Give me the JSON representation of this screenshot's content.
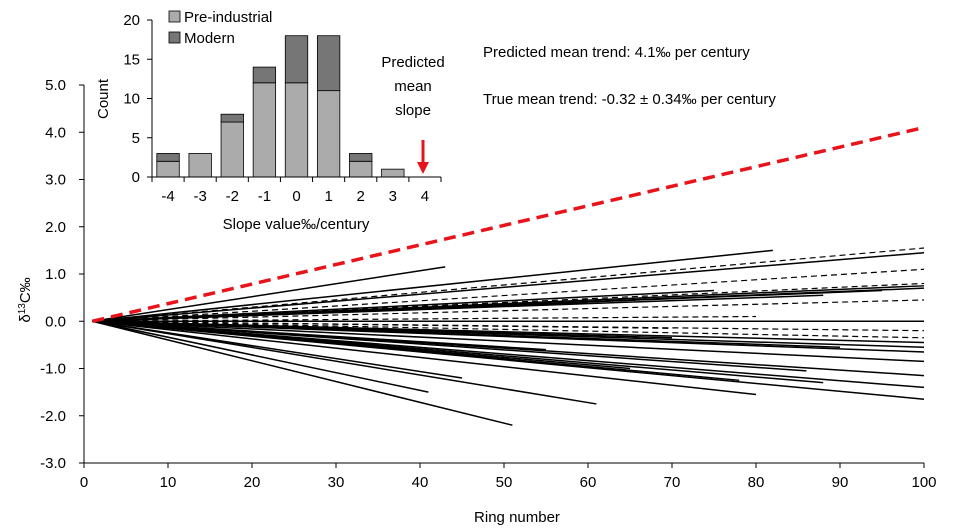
{
  "chart_data": [
    {
      "type": "line",
      "xlabel": "Ring number",
      "ylabel": "δ13C‰",
      "ylabel_parts": [
        "δ",
        "13",
        "C‰"
      ],
      "xlim": [
        0,
        100
      ],
      "ylim": [
        -3.0,
        5.0
      ],
      "x_ticks": [
        "0",
        "10",
        "20",
        "30",
        "40",
        "50",
        "60",
        "70",
        "80",
        "90",
        "100"
      ],
      "y_ticks": [
        "-3.0",
        "-2.0",
        "-1.0",
        "0.0",
        "1.0",
        "2.0",
        "3.0",
        "4.0",
        "5.0"
      ],
      "grid": false,
      "annotations": [
        "Predicted mean trend: 4.1‰ per century",
        "True mean trend: -0.32 ± 0.34‰ per century"
      ],
      "predicted_trend": {
        "style": "dashed",
        "color": "#e8141b",
        "x": [
          1,
          100
        ],
        "y": [
          0.0,
          4.1
        ]
      },
      "series_solid": [
        {
          "x": [
            1,
            43
          ],
          "y": [
            0,
            1.15
          ]
        },
        {
          "x": [
            1,
            82
          ],
          "y": [
            0,
            1.5
          ]
        },
        {
          "x": [
            1,
            100
          ],
          "y": [
            0,
            1.45
          ]
        },
        {
          "x": [
            1,
            100
          ],
          "y": [
            0,
            0.75
          ]
        },
        {
          "x": [
            1,
            100
          ],
          "y": [
            0,
            0.7
          ]
        },
        {
          "x": [
            1,
            95
          ],
          "y": [
            0,
            0.65
          ]
        },
        {
          "x": [
            1,
            88
          ],
          "y": [
            0,
            0.55
          ]
        },
        {
          "x": [
            1,
            75
          ],
          "y": [
            0,
            0.65
          ]
        },
        {
          "x": [
            1,
            60
          ],
          "y": [
            0,
            0.4
          ]
        },
        {
          "x": [
            1,
            100
          ],
          "y": [
            0,
            0.0
          ]
        },
        {
          "x": [
            1,
            100
          ],
          "y": [
            0,
            -0.45
          ]
        },
        {
          "x": [
            1,
            100
          ],
          "y": [
            0,
            -0.55
          ]
        },
        {
          "x": [
            1,
            100
          ],
          "y": [
            0,
            -0.65
          ]
        },
        {
          "x": [
            1,
            90
          ],
          "y": [
            0,
            -0.55
          ]
        },
        {
          "x": [
            1,
            100
          ],
          "y": [
            0,
            -0.85
          ]
        },
        {
          "x": [
            1,
            100
          ],
          "y": [
            0,
            -1.15
          ]
        },
        {
          "x": [
            1,
            100
          ],
          "y": [
            0,
            -1.4
          ]
        },
        {
          "x": [
            1,
            100
          ],
          "y": [
            0,
            -1.65
          ]
        },
        {
          "x": [
            1,
            88
          ],
          "y": [
            0,
            -1.3
          ]
        },
        {
          "x": [
            1,
            86
          ],
          "y": [
            0,
            -1.05
          ]
        },
        {
          "x": [
            1,
            78
          ],
          "y": [
            0,
            -1.25
          ]
        },
        {
          "x": [
            1,
            80
          ],
          "y": [
            0,
            -1.55
          ]
        },
        {
          "x": [
            1,
            65
          ],
          "y": [
            0,
            -1.0
          ]
        },
        {
          "x": [
            1,
            61
          ],
          "y": [
            0,
            -1.75
          ]
        },
        {
          "x": [
            1,
            51
          ],
          "y": [
            0,
            -2.2
          ]
        },
        {
          "x": [
            1,
            41
          ],
          "y": [
            0,
            -1.5
          ]
        },
        {
          "x": [
            1,
            45
          ],
          "y": [
            0,
            -1.2
          ]
        },
        {
          "x": [
            1,
            55
          ],
          "y": [
            0,
            -0.6
          ]
        },
        {
          "x": [
            1,
            70
          ],
          "y": [
            0,
            -0.35
          ]
        },
        {
          "x": [
            1,
            35
          ],
          "y": [
            0,
            -0.5
          ]
        }
      ],
      "series_dashed": [
        {
          "x": [
            1,
            100
          ],
          "y": [
            0,
            1.55
          ]
        },
        {
          "x": [
            1,
            100
          ],
          "y": [
            0,
            1.1
          ]
        },
        {
          "x": [
            1,
            100
          ],
          "y": [
            0,
            0.8
          ]
        },
        {
          "x": [
            1,
            100
          ],
          "y": [
            0,
            0.45
          ]
        },
        {
          "x": [
            1,
            100
          ],
          "y": [
            0,
            -0.2
          ]
        },
        {
          "x": [
            1,
            100
          ],
          "y": [
            0,
            -0.35
          ]
        },
        {
          "x": [
            1,
            80
          ],
          "y": [
            0,
            0.1
          ]
        },
        {
          "x": [
            1,
            70
          ],
          "y": [
            0,
            -0.15
          ]
        }
      ]
    },
    {
      "type": "bar",
      "stacked": true,
      "xlabel": "Slope value‰/century",
      "ylabel": "Count",
      "categories": [
        "-4",
        "-3",
        "-2",
        "-1",
        "0",
        "1",
        "2",
        "3",
        "4"
      ],
      "ylim": [
        0,
        20
      ],
      "y_ticks": [
        "0",
        "5",
        "10",
        "15",
        "20"
      ],
      "legend_position": "top-left",
      "series": [
        {
          "name": "Pre-industrial",
          "color": "#ababab",
          "values": [
            2,
            3,
            7,
            12,
            12,
            11,
            2,
            1,
            0
          ]
        },
        {
          "name": "Modern",
          "color": "#767676",
          "values": [
            1,
            0,
            1,
            2,
            6,
            7,
            1,
            0,
            0
          ]
        }
      ],
      "arrow_annotation": {
        "category": "4",
        "color": "#e8141b",
        "label": [
          "Predicted",
          "mean",
          "slope"
        ]
      }
    }
  ]
}
